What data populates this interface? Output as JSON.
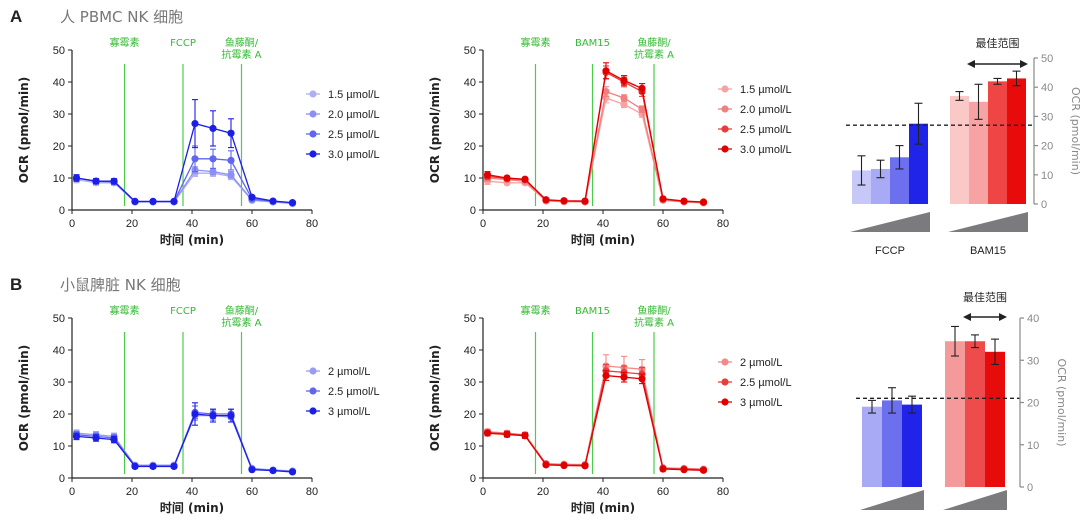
{
  "panels": [
    {
      "letter": "A",
      "title": "人 PBMC NK 细胞"
    },
    {
      "letter": "B",
      "title": "小鼠脾脏 NK 细胞"
    }
  ],
  "colors": {
    "blue": [
      "#aeb0f5",
      "#8d90f2",
      "#6166ee",
      "#1a1ee6"
    ],
    "blue3": [
      "#9a9cf3",
      "#6166ee",
      "#1a1ee6"
    ],
    "red": [
      "#f7a3a3",
      "#f07f7f",
      "#ea3c3c",
      "#e00000"
    ],
    "red3": [
      "#f28a8a",
      "#ea3c3c",
      "#e00000"
    ],
    "inject": "#4ccc4c"
  },
  "chart_data": [
    {
      "id": "A-left",
      "type": "line",
      "xlabel": "时间 (min)",
      "ylabel": "OCR (pmol/min)",
      "xlim": [
        0,
        80
      ],
      "ylim": [
        0,
        50
      ],
      "xticks": [
        0,
        20,
        40,
        60,
        80
      ],
      "yticks": [
        0,
        10,
        20,
        30,
        40,
        50
      ],
      "injections": [
        {
          "x": 17.5,
          "label": [
            "寡霉素"
          ]
        },
        {
          "x": 37,
          "label": [
            "FCCP"
          ]
        },
        {
          "x": 56.5,
          "label": [
            "鱼藤酮/",
            "抗霉素 A"
          ]
        }
      ],
      "x": [
        1.5,
        8,
        14,
        21,
        27,
        34,
        41,
        47,
        53,
        60,
        67,
        73.5
      ],
      "series": [
        {
          "name": "1.5 µmol/L",
          "values": [
            9.5,
            8.5,
            8.5,
            2.5,
            2.5,
            2.5,
            11.5,
            11.5,
            10.5,
            3,
            2.5,
            2
          ],
          "err": [
            1,
            0.8,
            0.8,
            0.3,
            0.3,
            0.3,
            1,
            1,
            1,
            0.4,
            0.3,
            0.3
          ]
        },
        {
          "name": "2.0 µmol/L",
          "values": [
            10,
            9,
            8.8,
            2.6,
            2.6,
            2.6,
            12.5,
            12,
            11,
            3.2,
            2.6,
            2.1
          ],
          "err": [
            1,
            0.8,
            0.8,
            0.3,
            0.3,
            0.3,
            1,
            1,
            1,
            0.4,
            0.3,
            0.3
          ]
        },
        {
          "name": "2.5 µmol/L",
          "values": [
            10,
            9,
            8.8,
            2.6,
            2.6,
            2.6,
            16,
            16,
            15.5,
            3.5,
            2.7,
            2.2
          ],
          "err": [
            1,
            0.8,
            0.8,
            0.3,
            0.3,
            0.3,
            4,
            3,
            3,
            0.4,
            0.3,
            0.3
          ]
        },
        {
          "name": "3.0 µmol/L",
          "values": [
            10,
            9,
            9,
            2.7,
            2.7,
            2.7,
            27,
            25.5,
            24,
            4,
            2.8,
            2.3
          ],
          "err": [
            1,
            0.8,
            0.8,
            0.3,
            0.3,
            0.3,
            7.5,
            5.5,
            4.5,
            0.5,
            0.3,
            0.3
          ]
        }
      ]
    },
    {
      "id": "A-mid",
      "type": "line",
      "xlabel": "时间 (min)",
      "ylabel": "OCR (pmol/min)",
      "xlim": [
        0,
        80
      ],
      "ylim": [
        0,
        50
      ],
      "xticks": [
        0,
        20,
        40,
        60,
        80
      ],
      "yticks": [
        0,
        10,
        20,
        30,
        40,
        50
      ],
      "injections": [
        {
          "x": 17.5,
          "label": [
            "寡霉素"
          ]
        },
        {
          "x": 36.5,
          "label": [
            "BAM15"
          ]
        },
        {
          "x": 57,
          "label": [
            "鱼藤酮/",
            "抗霉素 A"
          ]
        }
      ],
      "x": [
        1.5,
        8,
        14,
        21,
        27,
        34,
        41,
        47,
        53,
        60,
        67,
        73.5
      ],
      "series": [
        {
          "name": "1.5 µmol/L",
          "values": [
            9,
            8.5,
            8.5,
            2.8,
            2.6,
            2.5,
            35,
            33,
            30,
            3,
            2.5,
            2.2
          ],
          "err": [
            1,
            0.6,
            0.6,
            0.3,
            0.3,
            0.3,
            1.5,
            1,
            1,
            0.3,
            0.3,
            0.3
          ]
        },
        {
          "name": "2.0 µmol/L",
          "values": [
            10,
            9.5,
            9,
            3,
            2.7,
            2.6,
            37,
            35,
            31.5,
            3.2,
            2.6,
            2.3
          ],
          "err": [
            1,
            0.6,
            0.6,
            0.3,
            0.3,
            0.3,
            1.5,
            1,
            1,
            0.3,
            0.3,
            0.3
          ]
        },
        {
          "name": "2.5 µmol/L",
          "values": [
            10.5,
            9.8,
            9.5,
            3.1,
            2.8,
            2.7,
            43,
            40,
            37,
            3.4,
            2.7,
            2.4
          ],
          "err": [
            1,
            0.6,
            0.6,
            0.3,
            0.3,
            0.3,
            2,
            1.5,
            1.5,
            0.3,
            0.3,
            0.3
          ]
        },
        {
          "name": "3.0 µmol/L",
          "values": [
            11,
            10,
            9.6,
            3.2,
            2.9,
            2.8,
            43.5,
            40.5,
            38,
            3.5,
            2.8,
            2.5
          ],
          "err": [
            1,
            0.6,
            0.6,
            0.3,
            0.3,
            0.3,
            2.5,
            1.5,
            1.5,
            0.3,
            0.3,
            0.3
          ]
        }
      ]
    },
    {
      "id": "A-bar",
      "type": "bar",
      "ylabel": "OCR (pmol/min)",
      "ylim": [
        0,
        50
      ],
      "yticks": [
        0,
        10,
        20,
        30,
        40,
        50
      ],
      "threshold": 27,
      "best_range_label": "最佳范围",
      "groups": [
        {
          "name": "FCCP",
          "values": [
            11.5,
            12,
            16,
            27.5
          ],
          "err": [
            5,
            3,
            4,
            7
          ]
        },
        {
          "name": "BAM15",
          "values": [
            37,
            35,
            42,
            43
          ],
          "err": [
            1.5,
            6,
            1,
            2.5
          ]
        }
      ]
    },
    {
      "id": "B-left",
      "type": "line",
      "xlabel": "时间 (min)",
      "ylabel": "OCR (pmol/min)",
      "xlim": [
        0,
        80
      ],
      "ylim": [
        0,
        50
      ],
      "xticks": [
        0,
        20,
        40,
        60,
        80
      ],
      "yticks": [
        0,
        10,
        20,
        30,
        40,
        50
      ],
      "injections": [
        {
          "x": 17.5,
          "label": [
            "寡霉素"
          ]
        },
        {
          "x": 37,
          "label": [
            "FCCP"
          ]
        },
        {
          "x": 56.5,
          "label": [
            "鱼藤酮/",
            "抗霉素 A"
          ]
        }
      ],
      "x": [
        1.5,
        8,
        14,
        21,
        27,
        34,
        41,
        47,
        53,
        60,
        67,
        73.5
      ],
      "series": [
        {
          "name": "2 µmol/L",
          "values": [
            14,
            13.5,
            13,
            4,
            4,
            4,
            19.5,
            19.5,
            19,
            3,
            2.5,
            2.2
          ],
          "err": [
            1,
            1,
            1,
            0.5,
            0.5,
            0.5,
            1.5,
            1.5,
            1.5,
            0.4,
            0.4,
            0.4
          ]
        },
        {
          "name": "2.5 µmol/L",
          "values": [
            13.5,
            13,
            12.5,
            3.8,
            3.8,
            3.8,
            20.5,
            20,
            20,
            2.8,
            2.4,
            2
          ],
          "err": [
            1,
            1,
            1,
            0.5,
            0.5,
            0.5,
            2,
            1.5,
            1.5,
            0.4,
            0.4,
            0.4
          ]
        },
        {
          "name": "3 µmol/L",
          "values": [
            13,
            12.5,
            12,
            3.6,
            3.6,
            3.6,
            20,
            19.5,
            19.5,
            2.6,
            2.3,
            1.9
          ],
          "err": [
            1,
            1,
            1,
            0.5,
            0.5,
            0.5,
            3.5,
            2,
            2,
            0.4,
            0.4,
            0.4
          ]
        }
      ]
    },
    {
      "id": "B-mid",
      "type": "line",
      "xlabel": "时间 (min)",
      "ylabel": "OCR (pmol/min)",
      "xlim": [
        0,
        80
      ],
      "ylim": [
        0,
        50
      ],
      "xticks": [
        0,
        20,
        40,
        60,
        80
      ],
      "yticks": [
        0,
        10,
        20,
        30,
        40,
        50
      ],
      "injections": [
        {
          "x": 17.5,
          "label": [
            "寡霉素"
          ]
        },
        {
          "x": 36.5,
          "label": [
            "BAM15"
          ]
        },
        {
          "x": 57,
          "label": [
            "鱼藤酮/",
            "抗霉素 A"
          ]
        }
      ],
      "x": [
        1.5,
        8,
        14,
        21,
        27,
        34,
        41,
        47,
        53,
        60,
        67,
        73.5
      ],
      "series": [
        {
          "name": "2 µmol/L",
          "values": [
            14.5,
            14,
            13.5,
            4.5,
            4.3,
            4.2,
            35,
            34.5,
            34,
            3.2,
            3,
            2.8
          ],
          "err": [
            0.8,
            0.8,
            0.8,
            0.4,
            0.4,
            0.4,
            3.5,
            3.5,
            3,
            0.4,
            0.4,
            0.4
          ]
        },
        {
          "name": "2.5 µmol/L",
          "values": [
            14.2,
            13.8,
            13.4,
            4.3,
            4.1,
            4,
            33.5,
            33,
            32.5,
            3,
            2.8,
            2.6
          ],
          "err": [
            0.8,
            0.8,
            0.8,
            0.4,
            0.4,
            0.4,
            2,
            2,
            2,
            0.4,
            0.4,
            0.4
          ]
        },
        {
          "name": "3 µmol/L",
          "values": [
            14,
            13.6,
            13.2,
            4.1,
            3.9,
            3.8,
            32,
            31.5,
            31,
            2.8,
            2.6,
            2.4
          ],
          "err": [
            0.8,
            0.8,
            0.8,
            0.4,
            0.4,
            0.4,
            1.5,
            1.5,
            1.5,
            0.4,
            0.4,
            0.4
          ]
        }
      ]
    },
    {
      "id": "B-bar",
      "type": "bar",
      "ylabel": "OCR (pmol/min)",
      "ylim": [
        0,
        40
      ],
      "yticks": [
        0,
        10,
        20,
        30,
        40
      ],
      "threshold": 21,
      "best_range_label": "最佳范围",
      "groups": [
        {
          "name": "",
          "values": [
            19,
            20.5,
            19.5
          ],
          "err": [
            1.5,
            3,
            2
          ]
        },
        {
          "name": "",
          "values": [
            34.5,
            34.5,
            32
          ],
          "err": [
            3.5,
            1.5,
            3
          ]
        }
      ]
    }
  ]
}
